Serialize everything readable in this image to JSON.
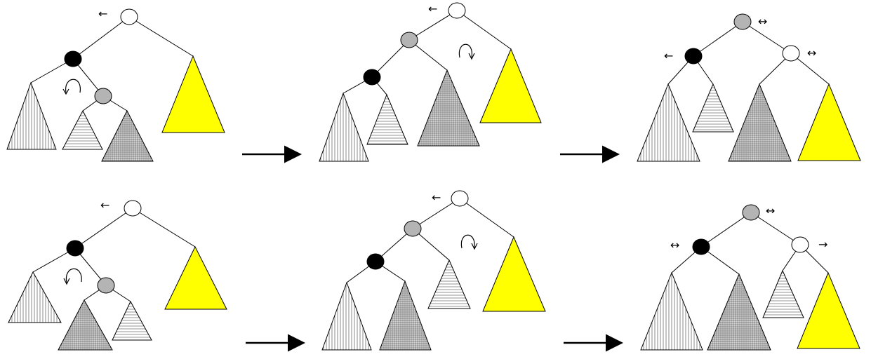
{
  "diagram": {
    "description_free": true,
    "rows": [
      {
        "panels": [
          {
            "nodes": [
              "white",
              "black",
              "gray"
            ],
            "rotation": "counterclockwise"
          },
          {
            "nodes": [
              "white",
              "gray",
              "black"
            ],
            "rotation": "clockwise"
          },
          {
            "nodes": [
              "gray",
              "black",
              "white"
            ]
          }
        ]
      },
      {
        "panels": [
          {
            "nodes": [
              "white",
              "black",
              "gray"
            ],
            "rotation": "counterclockwise"
          },
          {
            "nodes": [
              "white",
              "gray",
              "black"
            ],
            "rotation": "clockwise"
          },
          {
            "nodes": [
              "gray",
              "black",
              "white"
            ]
          }
        ]
      }
    ],
    "arrows": {
      "left": "←",
      "right": "→",
      "both": "↔"
    },
    "colors": {
      "white_node": "#ffffff",
      "gray_node": "#b4b4b4",
      "black_node": "#000000",
      "yellow_subtree": "#ffff00",
      "stroke": "#000000"
    }
  }
}
